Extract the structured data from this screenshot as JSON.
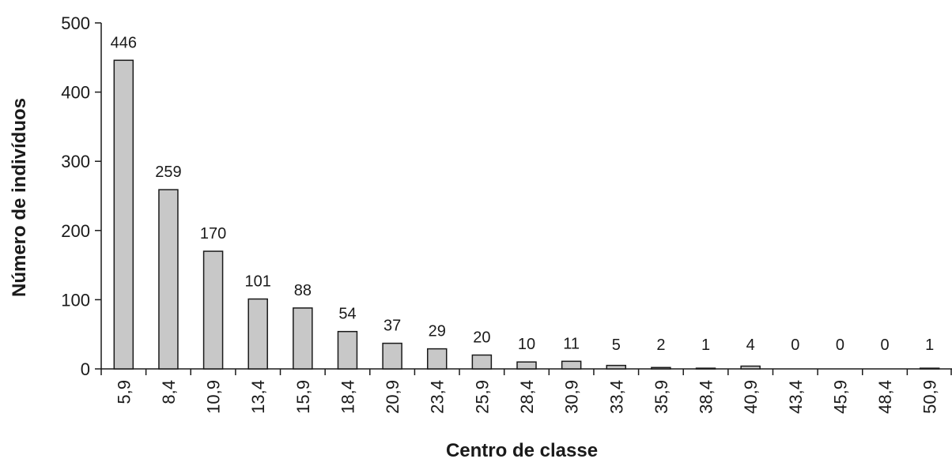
{
  "chart_data": {
    "type": "bar",
    "categories": [
      "5,9",
      "8,4",
      "10,9",
      "13,4",
      "15,9",
      "18,4",
      "20,9",
      "23,4",
      "25,9",
      "28,4",
      "30,9",
      "33,4",
      "35,9",
      "38,4",
      "40,9",
      "43,4",
      "45,9",
      "48,4",
      "50,9"
    ],
    "values": [
      446,
      259,
      170,
      101,
      88,
      54,
      37,
      29,
      20,
      10,
      11,
      5,
      2,
      1,
      4,
      0,
      0,
      0,
      1
    ],
    "data_labels": [
      "446",
      "259",
      "170",
      "101",
      "88",
      "54",
      "37",
      "29",
      "20",
      "10",
      "11",
      "5",
      "2",
      "1",
      "4",
      "0",
      "0",
      "0",
      "1"
    ],
    "xlabel": "Centro de classe",
    "ylabel": "Número de indivíduos",
    "ylim": [
      0,
      500
    ],
    "yticks": [
      "0",
      "100",
      "200",
      "300",
      "400",
      "500"
    ],
    "grid": false,
    "legend": "none",
    "colors": {
      "bar_fill": "#c8c8c8",
      "bar_stroke": "#1a1a1a"
    }
  }
}
